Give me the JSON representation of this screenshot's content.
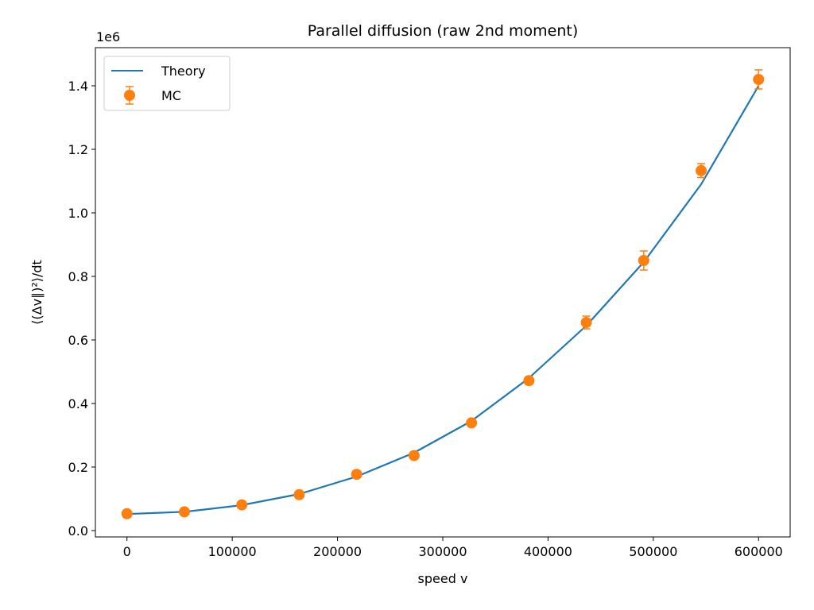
{
  "chart_data": {
    "type": "line",
    "title": "Parallel diffusion (raw 2nd moment)",
    "xlabel": "speed v",
    "ylabel": "⟨(Δv∥)²⟩/dt",
    "y_offset_text": "1e6",
    "x_ticks": [
      0,
      100000,
      200000,
      300000,
      400000,
      500000,
      600000
    ],
    "x_tick_labels": [
      "0",
      "100000",
      "200000",
      "300000",
      "400000",
      "500000",
      "600000"
    ],
    "y_ticks": [
      0,
      200000,
      400000,
      600000,
      800000,
      1000000,
      1200000,
      1400000
    ],
    "y_tick_labels": [
      "0.0",
      "0.2",
      "0.4",
      "0.6",
      "0.8",
      "1.0",
      "1.2",
      "1.4"
    ],
    "xlim": [
      -30000,
      630000
    ],
    "ylim": [
      -20000,
      1520000
    ],
    "grid": false,
    "legend_position": "upper-left",
    "legend": [
      "Theory",
      "MC"
    ],
    "series": [
      {
        "name": "Theory",
        "kind": "line",
        "color": "#1f77b4",
        "x": [
          0,
          54545,
          109091,
          163636,
          218182,
          272727,
          327273,
          381818,
          436364,
          490909,
          545455,
          600000
        ],
        "y": [
          52000,
          59000,
          80000,
          115000,
          170000,
          245000,
          345000,
          480000,
          645000,
          845000,
          1090000,
          1400000
        ]
      },
      {
        "name": "MC",
        "kind": "errorbar",
        "color": "#ff7f0e",
        "x": [
          0,
          54545,
          109091,
          163636,
          218182,
          272727,
          327273,
          381818,
          436364,
          490909,
          545455,
          600000
        ],
        "y": [
          53000,
          59000,
          81000,
          113000,
          177000,
          236000,
          339000,
          472000,
          655000,
          850000,
          1133000,
          1420000
        ],
        "yerr": [
          2000,
          2000,
          3000,
          4000,
          5000,
          7000,
          9000,
          12000,
          20000,
          30000,
          22000,
          30000
        ]
      }
    ]
  }
}
